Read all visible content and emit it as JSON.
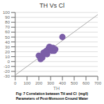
{
  "chart_data": {
    "type": "scatter",
    "title": "TH Vs Cl",
    "xlabel": "TH",
    "annotations": [
      "Fig: 7 Correlation between TH and Cl  (mg/l)",
      "Parameters of Post-Monsoon Ground Water"
    ],
    "series": [
      {
        "type": "scatter",
        "color": "#7B5EA7",
        "x": [
          200,
          215,
          230,
          240,
          250,
          255,
          265,
          270,
          280,
          285,
          290,
          300,
          305,
          310,
          320,
          330,
          340,
          400
        ],
        "values": [
          12,
          5,
          8,
          18,
          16,
          20,
          22,
          15,
          25,
          28,
          30,
          28,
          25,
          22,
          28,
          22,
          25,
          50
        ]
      },
      {
        "type": "line",
        "color": "#aaaaaa",
        "x": [
          0,
          700
        ],
        "values": [
          -27.516467,
          95.592182
        ]
      }
    ],
    "xlim": [
      0,
      700
    ],
    "ylim": [
      -30,
      100
    ],
    "xticks": [
      0,
      100,
      200,
      300,
      400,
      500,
      600,
      700
    ],
    "yticks": [
      -30,
      -20,
      -10,
      0,
      10,
      20,
      30,
      40,
      50,
      60,
      70,
      80,
      90,
      100
    ],
    "grid": true
  }
}
